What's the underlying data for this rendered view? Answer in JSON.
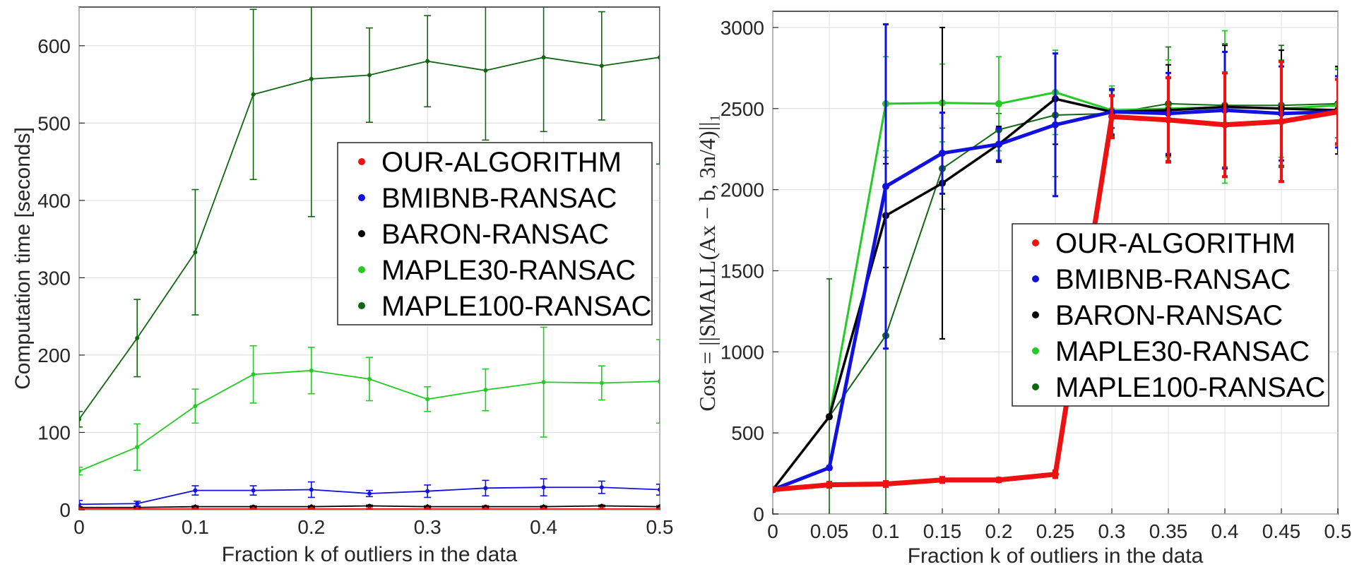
{
  "colors": {
    "OUR-ALGORITHM": "#ee1111",
    "BMIBNB-RANSAC": "#1111dd",
    "BARON-RANSAC": "#000000",
    "MAPLE30-RANSAC": "#22cc22",
    "MAPLE100-RANSAC": "#116611"
  },
  "chart_data": [
    {
      "type": "line",
      "xlabel": "Fraction k of outliers in the data",
      "ylabel": "Computation time [seconds]",
      "xlim": [
        0,
        0.5
      ],
      "ylim": [
        0,
        650
      ],
      "xticks": [
        0,
        0.1,
        0.2,
        0.3,
        0.4,
        0.5
      ],
      "xtick_labels": [
        "0",
        "0.1",
        "0.2",
        "0.3",
        "0.4",
        "0.5"
      ],
      "yticks": [
        0,
        100,
        200,
        300,
        400,
        500,
        600
      ],
      "ytick_labels": [
        "0",
        "100",
        "200",
        "300",
        "400",
        "500",
        "600"
      ],
      "grid": true,
      "legend_position": "center-right",
      "x": [
        0,
        0.05,
        0.1,
        0.15,
        0.2,
        0.25,
        0.3,
        0.35,
        0.4,
        0.45,
        0.5
      ],
      "series": [
        {
          "name": "OUR-ALGORITHM",
          "values": [
            1,
            1,
            1,
            1,
            1,
            1,
            1,
            1,
            1,
            1,
            1
          ],
          "errors": [
            0.5,
            0.5,
            0.5,
            0.5,
            0.5,
            0.5,
            0.5,
            0.5,
            0.5,
            0.5,
            0.5
          ]
        },
        {
          "name": "BMIBNB-RANSAC",
          "values": [
            7,
            8,
            25,
            25,
            26,
            21,
            24,
            28,
            29,
            29,
            26
          ],
          "errors": [
            5,
            3,
            6,
            6,
            10,
            4,
            8,
            10,
            11,
            8,
            7
          ]
        },
        {
          "name": "BARON-RANSAC",
          "values": [
            3,
            3,
            4,
            4,
            4,
            5,
            4,
            4,
            4,
            5,
            4
          ],
          "errors": [
            1,
            1,
            1,
            1,
            1,
            1,
            1,
            1,
            1,
            1,
            1
          ]
        },
        {
          "name": "MAPLE30-RANSAC",
          "values": [
            50,
            81,
            134,
            175,
            180,
            169,
            143,
            155,
            165,
            164,
            166
          ],
          "errors": [
            5,
            30,
            22,
            37,
            30,
            28,
            16,
            27,
            71,
            22,
            54
          ]
        },
        {
          "name": "MAPLE100-RANSAC",
          "values": [
            117,
            222,
            333,
            537,
            557,
            562,
            580,
            568,
            585,
            574,
            585
          ],
          "errors": [
            10,
            50,
            81,
            110,
            178,
            61,
            59,
            90,
            96,
            70,
            138
          ]
        }
      ]
    },
    {
      "type": "line",
      "xlabel": "Fraction k of outliers in the data",
      "ylabel": "Cost = ||SMALL(Ax − b, 3n/4)||₁",
      "xlim": [
        0,
        0.5
      ],
      "ylim": [
        0,
        3100
      ],
      "xticks": [
        0,
        0.05,
        0.1,
        0.15,
        0.2,
        0.25,
        0.3,
        0.35,
        0.4,
        0.45,
        0.5
      ],
      "xtick_labels": [
        "0",
        "0.05",
        "0.1",
        "0.15",
        "0.2",
        "0.25",
        "0.3",
        "0.35",
        "0.4",
        "0.45",
        "0.5"
      ],
      "yticks": [
        0,
        500,
        1000,
        1500,
        2000,
        2500,
        3000
      ],
      "ytick_labels": [
        "0",
        "500",
        "1000",
        "1500",
        "2000",
        "2500",
        "3000"
      ],
      "grid": true,
      "legend_position": "center-right",
      "x": [
        0,
        0.05,
        0.1,
        0.15,
        0.2,
        0.25,
        0.3,
        0.35,
        0.4,
        0.45,
        0.5
      ],
      "series": [
        {
          "name": "OUR-ALGORITHM",
          "width": 7,
          "values": [
            150,
            180,
            185,
            210,
            210,
            245,
            2450,
            2430,
            2400,
            2420,
            2480
          ],
          "errors": [
            10,
            15,
            15,
            15,
            10,
            20,
            130,
            260,
            320,
            370,
            200
          ]
        },
        {
          "name": "BMIBNB-RANSAC",
          "width": 5,
          "values": [
            150,
            285,
            2020,
            2225,
            2280,
            2400,
            2480,
            2470,
            2490,
            2470,
            2480
          ],
          "errors": [
            10,
            10,
            1000,
            250,
            100,
            440,
            140,
            250,
            360,
            290,
            220
          ]
        },
        {
          "name": "BARON-RANSAC",
          "width": 3.5,
          "values": [
            150,
            600,
            1840,
            2040,
            2280,
            2560,
            2480,
            2490,
            2510,
            2500,
            2490
          ],
          "errors": [
            10,
            10,
            320,
            960,
            110,
            280,
            100,
            280,
            380,
            360,
            270
          ]
        },
        {
          "name": "MAPLE30-RANSAC",
          "width": 3,
          "values": [
            150,
            600,
            2530,
            2535,
            2530,
            2600,
            2490,
            2500,
            2510,
            2500,
            2520
          ],
          "errors": [
            10,
            10,
            290,
            240,
            290,
            260,
            150,
            300,
            470,
            300,
            230
          ]
        },
        {
          "name": "MAPLE100-RANSAC",
          "width": 2,
          "values": [
            150,
            600,
            1100,
            2130,
            2370,
            2460,
            2470,
            2530,
            2520,
            2520,
            2530
          ],
          "errors": [
            10,
            850,
            1100,
            250,
            100,
            380,
            140,
            350,
            380,
            370,
            210
          ]
        }
      ]
    }
  ]
}
